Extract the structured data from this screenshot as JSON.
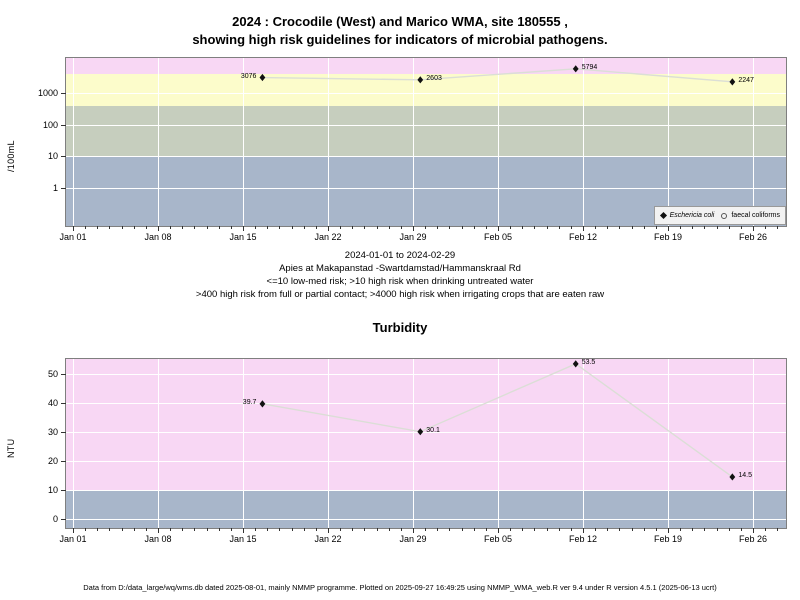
{
  "title": {
    "line1": "2024 : Crocodile (West) and Marico WMA, site 180555 ,",
    "line2": "showing high risk guidelines for indicators of microbial pathogens."
  },
  "subtitle": {
    "line1": "2024-01-01 to 2024-02-29",
    "line2": "Apies at Makapanstad -Swartdamstad/Hammanskraal Rd",
    "line3": "<=10 low-med risk; >10 high risk when drinking untreated water",
    "line4": ">400 high risk from full or partial contact; >4000 high risk when irrigating crops that are eaten raw"
  },
  "footer": "Data from D:/data_large/wq/wms.db dated 2025-08-01, mainly NMMP programme. Plotted on 2025-09-27 16:49:25 using NMMP_WMA_web.R ver 9.4 under R version 4.5.1 (2025-06-13 ucrt)",
  "colors": {
    "band_pink": "#F8D7F4",
    "band_yellow": "#FCFCCB",
    "band_green": "#C6CEBE",
    "band_blue": "#A8B6CA",
    "line": "#DBDED6",
    "marker": "#111111",
    "gridline": "#FFFFFF",
    "frame": "#7F7F7F"
  },
  "chart_data": [
    {
      "type": "line",
      "title": "",
      "ylabel": "/100mL",
      "yscale": "log",
      "yticks": [
        1,
        10,
        100,
        1000
      ],
      "x_tick_labels": [
        "Jan 01",
        "Jan 08",
        "Jan 15",
        "Jan 22",
        "Jan 29",
        "Feb 05",
        "Feb 12",
        "Feb 19",
        "Feb 26"
      ],
      "x_range": "2024-01-01 to 2024-02-29",
      "grid": true,
      "risk_bands": [
        {
          "min": 4000,
          "max": null,
          "color": "#F8D7F4",
          "meaning": ">4000 high risk when irrigating crops that are eaten raw"
        },
        {
          "min": 400,
          "max": 4000,
          "color": "#FCFCCB",
          "meaning": ">400 high risk from full or partial contact"
        },
        {
          "min": 10,
          "max": 400,
          "color": "#C6CEBE",
          "meaning": ">10 high risk when drinking untreated water"
        },
        {
          "min": null,
          "max": 10,
          "color": "#A8B6CA",
          "meaning": "<=10 low-med risk"
        }
      ],
      "series": [
        {
          "name": "Eschericia coli",
          "marker": "filled-diamond",
          "points": [
            {
              "day": 15.6,
              "value": 3076,
              "label": "3076",
              "label_side": "left"
            },
            {
              "day": 28.6,
              "value": 2603,
              "label": "2603",
              "label_side": "right"
            },
            {
              "day": 41.4,
              "value": 5794,
              "label": "5794",
              "label_side": "right"
            },
            {
              "day": 54.3,
              "value": 2247,
              "label": "2247",
              "label_side": "right"
            }
          ]
        },
        {
          "name": "faecal coliforms",
          "marker": "open-circle",
          "points": []
        }
      ],
      "legend": {
        "position": "bottom-right",
        "items": [
          {
            "marker": "filled-diamond",
            "label": "Eschericia coli"
          },
          {
            "marker": "open-circle",
            "label": "faecal coliforms"
          }
        ]
      }
    },
    {
      "type": "line",
      "title": "Turbidity",
      "ylabel": "NTU",
      "yscale": "linear",
      "yticks": [
        0,
        10,
        20,
        30,
        40,
        50
      ],
      "x_tick_labels": [
        "Jan 01",
        "Jan 08",
        "Jan 15",
        "Jan 22",
        "Jan 29",
        "Feb 05",
        "Feb 12",
        "Feb 19",
        "Feb 26"
      ],
      "x_range": "2024-01-01 to 2024-02-29",
      "grid": true,
      "risk_bands": [
        {
          "min": 10,
          "max": null,
          "color": "#F8D7F4",
          "meaning": "above 10 NTU"
        },
        {
          "min": null,
          "max": 10,
          "color": "#A8B6CA",
          "meaning": "0-10 NTU"
        }
      ],
      "series": [
        {
          "name": "Turbidity",
          "marker": "filled-diamond",
          "points": [
            {
              "day": 15.6,
              "value": 39.7,
              "label": "39.7",
              "label_side": "left"
            },
            {
              "day": 28.6,
              "value": 30.1,
              "label": "30.1",
              "label_side": "right"
            },
            {
              "day": 41.4,
              "value": 53.5,
              "label": "53.5",
              "label_side": "right"
            },
            {
              "day": 54.3,
              "value": 14.5,
              "label": "14.5",
              "label_side": "right"
            }
          ]
        }
      ]
    }
  ]
}
